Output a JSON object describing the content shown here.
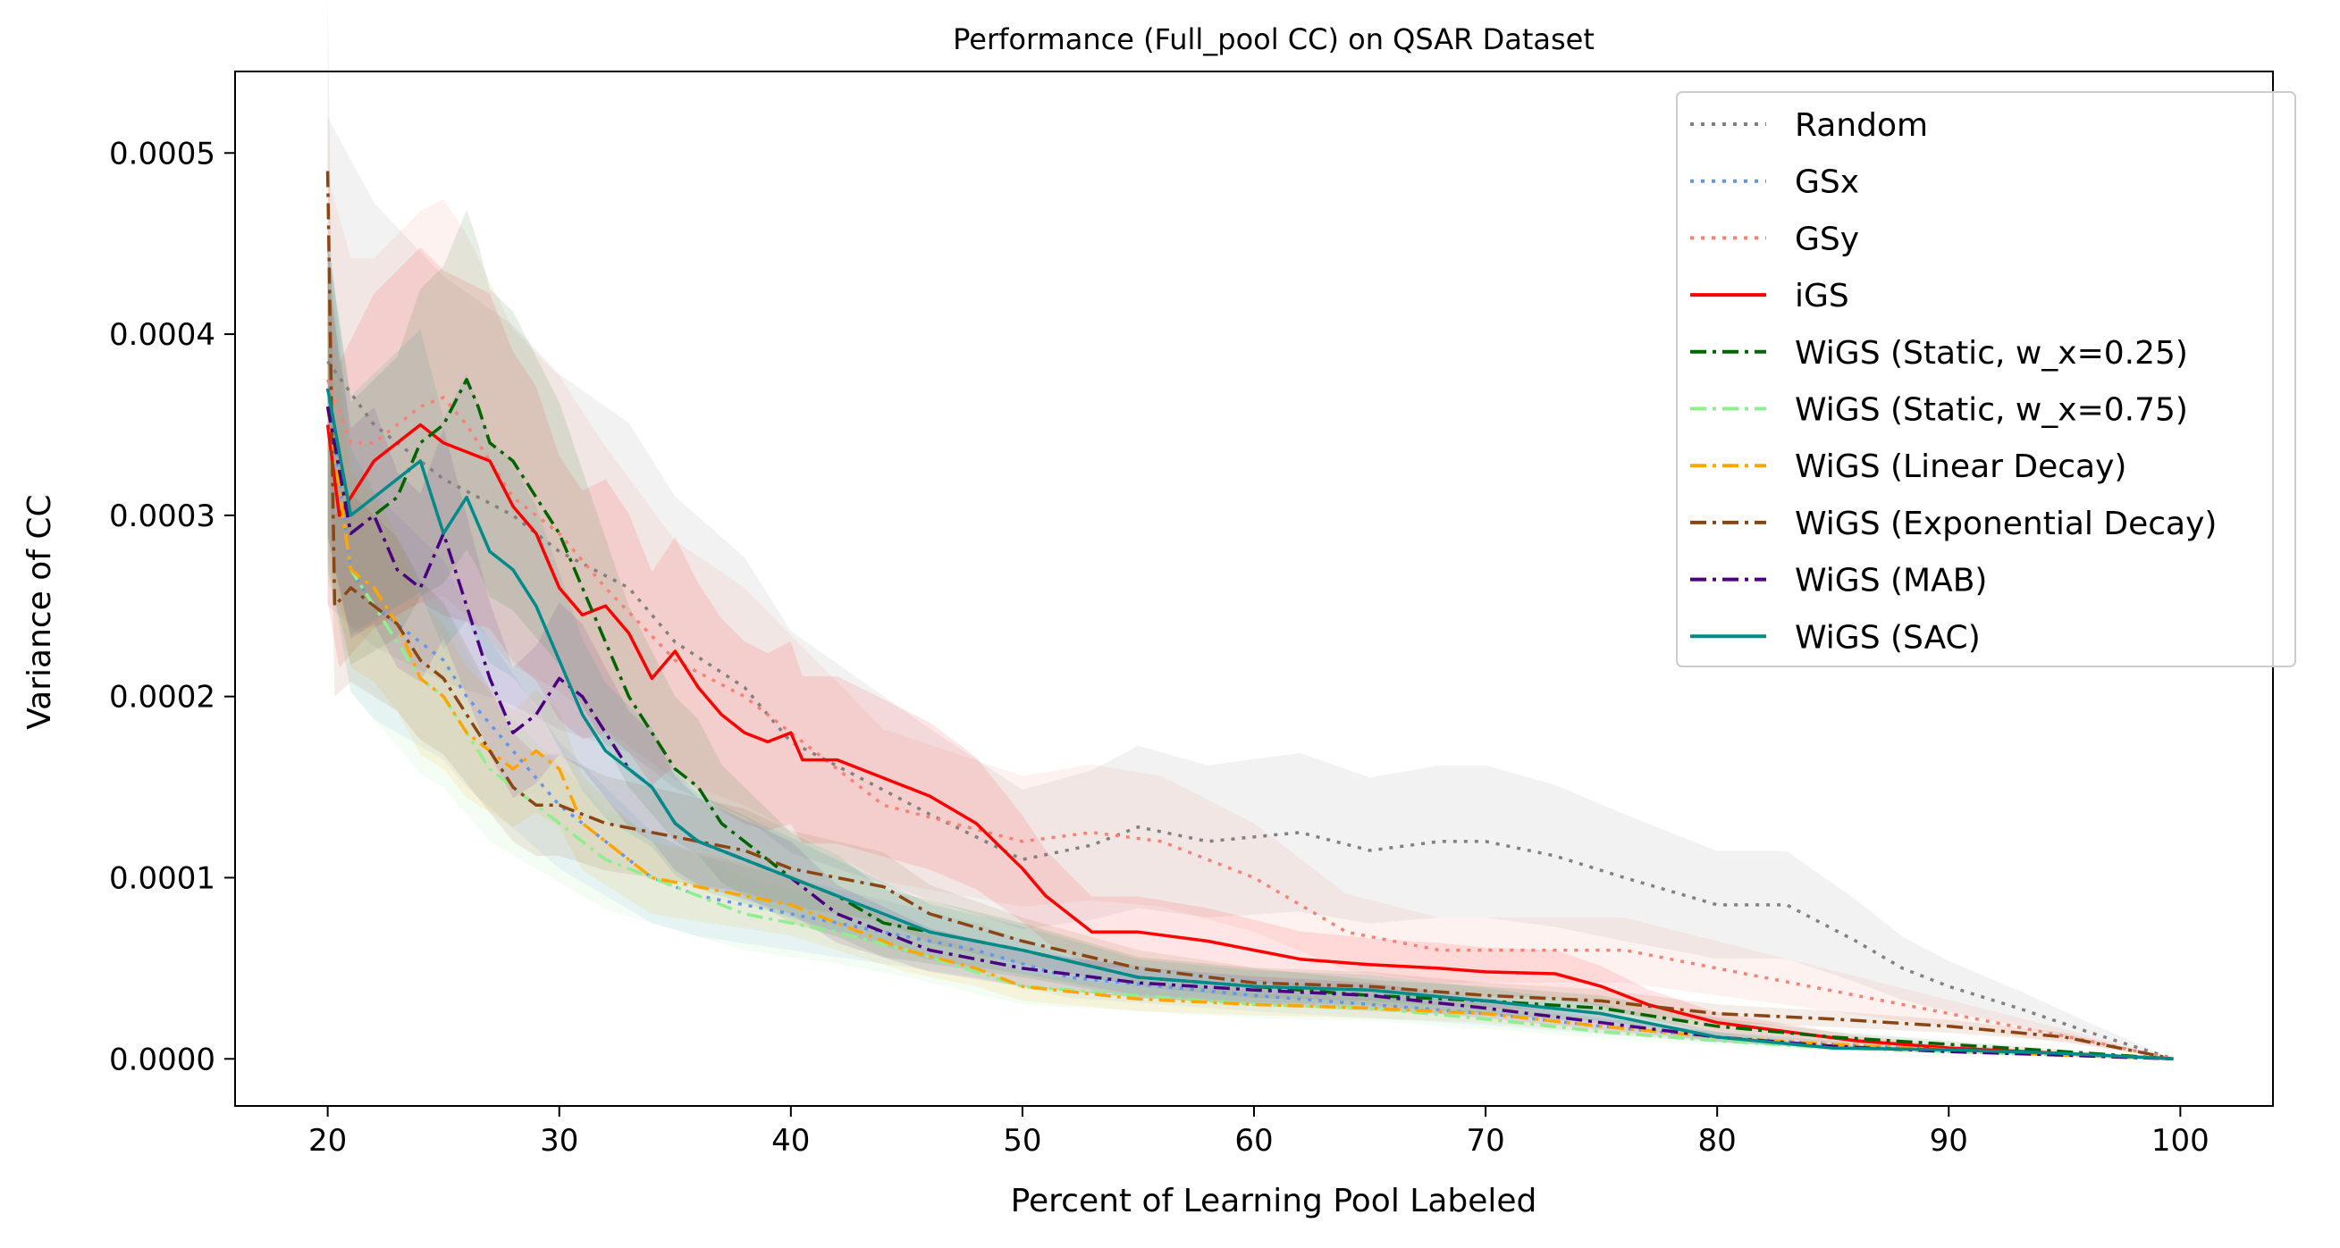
{
  "chart_data": {
    "type": "line",
    "title": "Performance (Full_pool CC) on QSAR Dataset",
    "xlabel": "Percent of Learning Pool Labeled",
    "ylabel": "Variance of CC",
    "xlim": [
      16,
      104
    ],
    "ylim": [
      -2.6e-05,
      0.000545
    ],
    "xticks": [
      20,
      30,
      40,
      50,
      60,
      70,
      80,
      90,
      100
    ],
    "xtick_labels": [
      "20",
      "30",
      "40",
      "50",
      "60",
      "70",
      "80",
      "90",
      "100"
    ],
    "yticks": [
      0.0,
      0.0001,
      0.0002,
      0.0003,
      0.0004,
      0.0005
    ],
    "ytick_labels": [
      "0.0000",
      "0.0001",
      "0.0002",
      "0.0003",
      "0.0004",
      "0.0005"
    ],
    "grid": false,
    "legend_position": "top-right",
    "series": [
      {
        "name": "Random",
        "color": "#808080",
        "style": "dotted",
        "band": 0.35,
        "x": [
          20,
          22,
          25,
          28,
          30,
          33,
          35,
          38,
          40,
          43,
          46,
          50,
          53,
          55,
          58,
          62,
          65,
          68,
          70,
          73,
          76,
          80,
          83,
          86,
          88,
          90,
          93,
          96,
          99.7
        ],
        "y": [
          0.000385,
          0.00035,
          0.00032,
          0.0003,
          0.00028,
          0.00026,
          0.00023,
          0.000205,
          0.000175,
          0.000155,
          0.000135,
          0.00011,
          0.000118,
          0.000128,
          0.00012,
          0.000125,
          0.000115,
          0.00012,
          0.00012,
          0.000112,
          0.0001,
          8.5e-05,
          8.5e-05,
          6.5e-05,
          5e-05,
          4e-05,
          2.8e-05,
          1.5e-05,
          0.0
        ]
      },
      {
        "name": "GSx",
        "color": "#6495ed",
        "style": "dotted",
        "band": 0.25,
        "x": [
          20,
          21,
          22,
          23,
          24,
          25,
          26,
          28,
          30,
          32,
          34,
          36,
          38,
          40,
          44,
          48,
          52,
          56,
          60,
          65,
          70,
          75,
          80,
          85,
          90,
          95,
          99.7
        ],
        "y": [
          0.00037,
          0.00027,
          0.00025,
          0.00024,
          0.00023,
          0.00022,
          0.0002,
          0.00017,
          0.00014,
          0.00012,
          0.0001,
          9e-05,
          8.5e-05,
          8e-05,
          7e-05,
          6e-05,
          4.5e-05,
          4e-05,
          3.5e-05,
          3e-05,
          2.5e-05,
          1.8e-05,
          1.2e-05,
          8e-06,
          5e-06,
          3e-06,
          0.0
        ]
      },
      {
        "name": "GSy",
        "color": "#fa8072",
        "style": "dotted",
        "band": 0.3,
        "x": [
          20,
          21,
          22,
          23,
          24,
          25,
          26,
          27,
          28,
          30,
          32,
          35,
          38,
          41,
          44,
          47,
          50,
          53,
          56,
          60,
          64,
          68,
          72,
          76,
          80,
          84,
          88,
          92,
          96,
          99.7
        ],
        "y": [
          0.000375,
          0.00034,
          0.00034,
          0.00035,
          0.00036,
          0.000365,
          0.00035,
          0.00033,
          0.00031,
          0.00029,
          0.00026,
          0.00022,
          0.0002,
          0.00017,
          0.00014,
          0.00013,
          0.00012,
          0.000125,
          0.00012,
          0.0001,
          7e-05,
          6e-05,
          6e-05,
          6e-05,
          5e-05,
          4e-05,
          3e-05,
          2e-05,
          1e-05,
          0.0
        ]
      },
      {
        "name": "iGS",
        "color": "#ff0000",
        "style": "solid",
        "band": 0.28,
        "x": [
          20,
          20.5,
          21,
          22,
          23,
          24,
          25,
          26,
          27,
          28,
          29,
          30,
          31,
          32,
          33,
          34,
          35,
          36,
          37,
          38,
          39,
          40,
          40.5,
          42,
          44,
          46,
          48,
          50,
          51,
          53,
          55,
          58,
          60,
          62,
          65,
          68,
          70,
          73,
          75,
          77,
          80,
          83,
          86,
          90,
          95,
          99.7
        ],
        "y": [
          0.00035,
          0.0003,
          0.00031,
          0.00033,
          0.00034,
          0.00035,
          0.00034,
          0.000335,
          0.00033,
          0.000305,
          0.00029,
          0.00026,
          0.000245,
          0.00025,
          0.000235,
          0.00021,
          0.000225,
          0.000205,
          0.00019,
          0.00018,
          0.000175,
          0.00018,
          0.000165,
          0.000165,
          0.000155,
          0.000145,
          0.00013,
          0.000105,
          9e-05,
          7e-05,
          7e-05,
          6.5e-05,
          6e-05,
          5.5e-05,
          5.2e-05,
          5e-05,
          4.8e-05,
          4.7e-05,
          4e-05,
          3e-05,
          2e-05,
          1.5e-05,
          1e-05,
          6e-06,
          3e-06,
          0.0
        ]
      },
      {
        "name": "WiGS (Static, w_x=0.25)",
        "color": "#006400",
        "style": "dashdot",
        "band": 0.25,
        "x": [
          20,
          21,
          22,
          23,
          24,
          25,
          26,
          26.5,
          27,
          28,
          29,
          30,
          31,
          32,
          33,
          34,
          35,
          36,
          37,
          38,
          40,
          42,
          44,
          46,
          48,
          50,
          55,
          60,
          65,
          70,
          75,
          80,
          85,
          90,
          95,
          99.7
        ],
        "y": [
          0.00036,
          0.00029,
          0.0003,
          0.00031,
          0.00034,
          0.00035,
          0.000375,
          0.00036,
          0.00034,
          0.00033,
          0.00031,
          0.00029,
          0.00026,
          0.00023,
          0.0002,
          0.00018,
          0.00016,
          0.00015,
          0.00013,
          0.00012,
          0.0001,
          9e-05,
          7.5e-05,
          7e-05,
          6.5e-05,
          6e-05,
          4.5e-05,
          4e-05,
          3.5e-05,
          3.2e-05,
          2.8e-05,
          1.8e-05,
          1.2e-05,
          8e-06,
          4e-06,
          0.0
        ]
      },
      {
        "name": "WiGS (Static, w_x=0.75)",
        "color": "#90ee90",
        "style": "dashdot",
        "band": 0.25,
        "x": [
          20,
          21,
          22,
          23,
          24,
          25,
          26,
          27,
          28,
          30,
          32,
          34,
          36,
          38,
          40,
          42,
          45,
          50,
          55,
          60,
          65,
          70,
          75,
          80,
          85,
          90,
          95,
          99.7
        ],
        "y": [
          0.00036,
          0.00027,
          0.00025,
          0.00023,
          0.00021,
          0.0002,
          0.00018,
          0.00016,
          0.00015,
          0.00013,
          0.00011,
          0.0001,
          9e-05,
          8e-05,
          7.5e-05,
          7e-05,
          6e-05,
          4e-05,
          3.5e-05,
          3e-05,
          2.8e-05,
          2.2e-05,
          1.5e-05,
          1e-05,
          6e-06,
          4e-06,
          2e-06,
          0.0
        ]
      },
      {
        "name": "WiGS (Linear Decay)",
        "color": "#ffa500",
        "style": "dashdot",
        "band": 0.2,
        "x": [
          20,
          21,
          22,
          23,
          24,
          25,
          26,
          27,
          28,
          29,
          30,
          31,
          32,
          33,
          34,
          36,
          38,
          40,
          42,
          45,
          48,
          50,
          55,
          60,
          65,
          70,
          75,
          80,
          85,
          90,
          95,
          99.7
        ],
        "y": [
          0.00036,
          0.00027,
          0.00026,
          0.00024,
          0.00021,
          0.0002,
          0.00018,
          0.00017,
          0.00016,
          0.00017,
          0.00016,
          0.00013,
          0.00012,
          0.00011,
          0.0001,
          9.5e-05,
          9e-05,
          8.5e-05,
          7.5e-05,
          6e-05,
          5e-05,
          4e-05,
          3.3e-05,
          3e-05,
          2.8e-05,
          2.5e-05,
          1.8e-05,
          1.2e-05,
          8e-06,
          5e-06,
          2e-06,
          0.0
        ]
      },
      {
        "name": "WiGS (Exponential Decay)",
        "color": "#8b4513",
        "style": "dashdot",
        "band": 0.2,
        "x": [
          20,
          20.3,
          21,
          22,
          23,
          24,
          25,
          26,
          27,
          28,
          29,
          30,
          32,
          34,
          36,
          38,
          40,
          42,
          44,
          46,
          50,
          55,
          60,
          65,
          70,
          75,
          80,
          85,
          90,
          95,
          99.7
        ],
        "y": [
          0.00049,
          0.00025,
          0.00026,
          0.00025,
          0.00024,
          0.00022,
          0.00021,
          0.00019,
          0.00017,
          0.00015,
          0.00014,
          0.00014,
          0.00013,
          0.000125,
          0.00012,
          0.000115,
          0.000105,
          0.0001,
          9.5e-05,
          8e-05,
          6.5e-05,
          5e-05,
          4.2e-05,
          4e-05,
          3.5e-05,
          3.2e-05,
          2.5e-05,
          2.2e-05,
          1.8e-05,
          1.2e-05,
          0.0
        ]
      },
      {
        "name": "WiGS (MAB)",
        "color": "#4b0082",
        "style": "dashdot",
        "band": 0.2,
        "x": [
          20,
          21,
          22,
          23,
          24,
          25,
          26,
          27,
          28,
          29,
          30,
          31,
          32,
          33,
          34,
          35,
          36,
          38,
          40,
          42,
          44,
          46,
          48,
          50,
          55,
          60,
          65,
          70,
          75,
          80,
          85,
          90,
          95,
          99.7
        ],
        "y": [
          0.00036,
          0.00029,
          0.0003,
          0.00027,
          0.00026,
          0.00029,
          0.00025,
          0.00021,
          0.00018,
          0.00019,
          0.00021,
          0.0002,
          0.00018,
          0.00016,
          0.00015,
          0.00013,
          0.00012,
          0.00011,
          0.0001,
          8e-05,
          7e-05,
          6e-05,
          5.5e-05,
          5e-05,
          4.2e-05,
          3.8e-05,
          3.5e-05,
          2.8e-05,
          2e-05,
          1.2e-05,
          7e-06,
          4e-06,
          2e-06,
          0.0
        ]
      },
      {
        "name": "WiGS (SAC)",
        "color": "#008b8b",
        "style": "solid",
        "band": 0.22,
        "x": [
          20,
          21,
          22,
          23,
          24,
          25,
          26,
          27,
          28,
          29,
          30,
          31,
          32,
          33,
          34,
          35,
          36,
          38,
          40,
          42,
          44,
          46,
          48,
          50,
          55,
          60,
          65,
          70,
          75,
          80,
          85,
          90,
          95,
          99.7
        ],
        "y": [
          0.00037,
          0.0003,
          0.00031,
          0.00032,
          0.00033,
          0.00029,
          0.00031,
          0.00028,
          0.00027,
          0.00025,
          0.00022,
          0.00019,
          0.00017,
          0.00016,
          0.00015,
          0.00013,
          0.00012,
          0.00011,
          0.0001,
          9e-05,
          8e-05,
          7e-05,
          6.5e-05,
          6e-05,
          4.5e-05,
          4e-05,
          3.8e-05,
          3.2e-05,
          2.5e-05,
          1.2e-05,
          6e-06,
          5e-06,
          3e-06,
          0.0
        ]
      }
    ]
  }
}
